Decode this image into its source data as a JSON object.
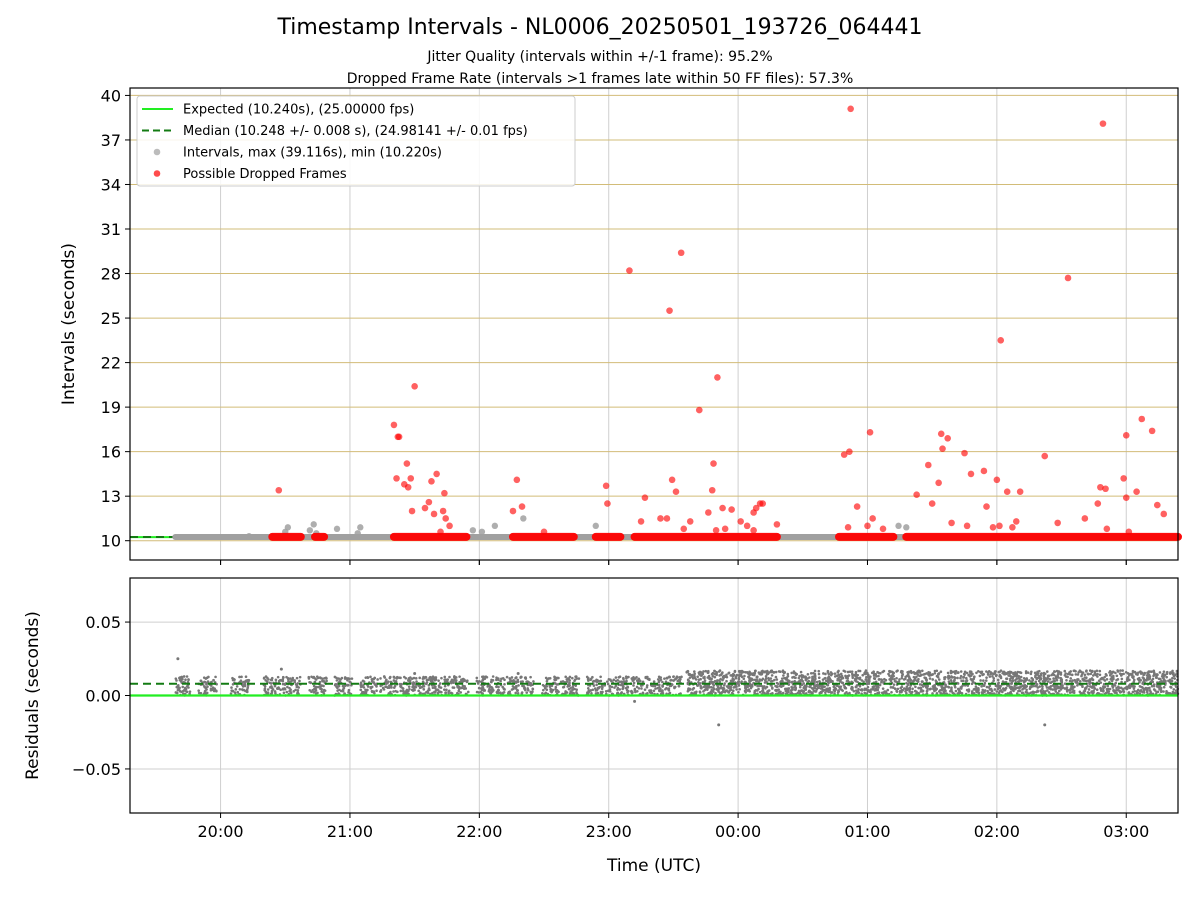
{
  "title": "Timestamp Intervals - NL0006_20250501_193726_064441",
  "subtitle_1": "Jitter Quality (intervals within +/-1 frame): 95.2%",
  "subtitle_2": "Dropped Frame Rate (intervals >1 frames late within 50 FF files): 57.3%",
  "colors": {
    "expected": "#22ee22",
    "median": "#137b13",
    "intervals": "#a0a0a0",
    "dropped": "#ff0000",
    "residuals": "#777777",
    "hgrid_top": "#d2bc78",
    "grid": "#cfcfcf"
  },
  "chart_data": [
    {
      "type": "scatter",
      "panel": "top",
      "xlabel": "",
      "ylabel": "Intervals (seconds)",
      "x_unit": "hours since 00:00 UTC",
      "xlim": [
        -4.7,
        3.4
      ],
      "ylim": [
        8.7,
        40.5
      ],
      "yticks": [
        10,
        13,
        16,
        19,
        22,
        25,
        28,
        31,
        34,
        37,
        40
      ],
      "xticks": [
        -4,
        -3,
        -2,
        -1,
        0,
        1,
        2,
        3
      ],
      "xtick_labels": [
        "20:00",
        "21:00",
        "22:00",
        "23:00",
        "00:00",
        "01:00",
        "02:00",
        "03:00"
      ],
      "grid": true,
      "legend_position": "top-left",
      "legend": [
        {
          "label": "Expected (10.240s), (25.00000 fps)",
          "kind": "line",
          "color": "#22ee22"
        },
        {
          "label": "Median (10.248 +/- 0.008 s), (24.98141 +/- 0.01 fps)",
          "kind": "dash",
          "color": "#137b13"
        },
        {
          "label": "Intervals, max (39.116s), min (10.220s)",
          "kind": "dot",
          "color": "#a0a0a0"
        },
        {
          "label": "Possible Dropped Frames",
          "kind": "dot",
          "color": "#ff0000"
        }
      ],
      "expected_value": 10.24,
      "median_value": 10.248,
      "baseline_segments": [
        [
          -4.35,
          -3.36
        ],
        [
          -2.9,
          -2.15
        ],
        [
          -1.95,
          -1.3
        ],
        [
          -1.0,
          0.15
        ],
        [
          0.1,
          0.6
        ],
        [
          0.6,
          1.2
        ],
        [
          1.25,
          1.55
        ],
        [
          1.55,
          2.4
        ],
        [
          2.3,
          3.4
        ]
      ],
      "interval_points": [
        [
          -3.78,
          10.3
        ],
        [
          -3.5,
          10.6
        ],
        [
          -3.48,
          10.9
        ],
        [
          -3.31,
          10.7
        ],
        [
          -3.28,
          11.1
        ],
        [
          -3.26,
          10.5
        ],
        [
          -3.1,
          10.8
        ],
        [
          -2.94,
          10.5
        ],
        [
          -2.92,
          10.9
        ],
        [
          -2.05,
          10.7
        ],
        [
          -1.98,
          10.6
        ],
        [
          -1.88,
          11.0
        ],
        [
          -1.66,
          11.5
        ],
        [
          -1.1,
          11.0
        ],
        [
          1.24,
          11.0
        ],
        [
          1.3,
          10.9
        ]
      ],
      "dropped_points": [
        [
          -3.55,
          13.4
        ],
        [
          -2.66,
          17.8
        ],
        [
          -2.63,
          17.0
        ],
        [
          -2.62,
          17.0
        ],
        [
          -2.64,
          14.2
        ],
        [
          -2.58,
          13.8
        ],
        [
          -2.56,
          15.2
        ],
        [
          -2.55,
          13.6
        ],
        [
          -2.53,
          14.2
        ],
        [
          -2.5,
          20.4
        ],
        [
          -2.52,
          12.0
        ],
        [
          -2.42,
          12.2
        ],
        [
          -2.39,
          12.6
        ],
        [
          -2.37,
          14.0
        ],
        [
          -2.35,
          11.8
        ],
        [
          -2.33,
          14.5
        ],
        [
          -2.28,
          12.0
        ],
        [
          -2.27,
          13.2
        ],
        [
          -2.26,
          11.5
        ],
        [
          -2.23,
          11.0
        ],
        [
          -2.3,
          10.6
        ],
        [
          -1.74,
          12.0
        ],
        [
          -1.71,
          14.1
        ],
        [
          -1.67,
          12.3
        ],
        [
          -1.5,
          10.6
        ],
        [
          -1.02,
          13.7
        ],
        [
          -1.01,
          12.5
        ],
        [
          -0.84,
          28.2
        ],
        [
          -0.75,
          11.3
        ],
        [
          -0.72,
          12.9
        ],
        [
          -0.6,
          11.5
        ],
        [
          -0.55,
          11.5
        ],
        [
          -0.53,
          25.5
        ],
        [
          -0.51,
          14.1
        ],
        [
          -0.48,
          13.3
        ],
        [
          -0.44,
          29.4
        ],
        [
          -0.42,
          10.8
        ],
        [
          -0.37,
          11.3
        ],
        [
          -0.3,
          18.8
        ],
        [
          -0.23,
          11.9
        ],
        [
          -0.19,
          15.2
        ],
        [
          -0.2,
          13.4
        ],
        [
          -0.16,
          21.0
        ],
        [
          -0.17,
          10.7
        ],
        [
          -0.12,
          12.2
        ],
        [
          -0.1,
          10.8
        ],
        [
          -0.05,
          12.1
        ],
        [
          0.02,
          11.3
        ],
        [
          0.07,
          11.0
        ],
        [
          0.12,
          11.9
        ],
        [
          0.14,
          12.2
        ],
        [
          0.17,
          12.5
        ],
        [
          0.19,
          12.5
        ],
        [
          0.3,
          11.1
        ],
        [
          0.12,
          10.7
        ],
        [
          0.82,
          15.8
        ],
        [
          0.86,
          16.0
        ],
        [
          0.85,
          10.9
        ],
        [
          0.87,
          39.1
        ],
        [
          0.92,
          12.3
        ],
        [
          1.0,
          11.0
        ],
        [
          1.02,
          17.3
        ],
        [
          1.04,
          11.5
        ],
        [
          1.12,
          10.8
        ],
        [
          1.38,
          13.1
        ],
        [
          1.47,
          15.1
        ],
        [
          1.5,
          12.5
        ],
        [
          1.55,
          13.9
        ],
        [
          1.57,
          17.2
        ],
        [
          1.58,
          16.2
        ],
        [
          1.62,
          16.9
        ],
        [
          1.65,
          11.2
        ],
        [
          1.75,
          15.9
        ],
        [
          1.77,
          11.0
        ],
        [
          1.8,
          14.5
        ],
        [
          1.9,
          14.7
        ],
        [
          1.92,
          12.3
        ],
        [
          1.97,
          10.9
        ],
        [
          2.0,
          14.1
        ],
        [
          2.02,
          11.0
        ],
        [
          2.03,
          23.5
        ],
        [
          2.08,
          13.3
        ],
        [
          2.12,
          10.9
        ],
        [
          2.15,
          11.3
        ],
        [
          2.18,
          13.3
        ],
        [
          2.37,
          15.7
        ],
        [
          2.47,
          11.2
        ],
        [
          2.55,
          27.7
        ],
        [
          2.68,
          11.5
        ],
        [
          2.78,
          12.5
        ],
        [
          2.8,
          13.6
        ],
        [
          2.82,
          38.1
        ],
        [
          2.84,
          13.5
        ],
        [
          2.85,
          10.8
        ],
        [
          2.98,
          14.2
        ],
        [
          3.0,
          17.1
        ],
        [
          3.0,
          12.9
        ],
        [
          3.02,
          10.6
        ],
        [
          3.08,
          13.3
        ],
        [
          3.12,
          18.2
        ],
        [
          3.2,
          17.4
        ],
        [
          3.24,
          12.4
        ],
        [
          3.29,
          11.8
        ]
      ]
    },
    {
      "type": "scatter",
      "panel": "bottom",
      "xlabel": "Time (UTC)",
      "ylabel": "Residuals (seconds)",
      "xlim": [
        -4.7,
        3.4
      ],
      "ylim": [
        -0.08,
        0.08
      ],
      "yticks": [
        -0.05,
        0.0,
        0.05
      ],
      "ytick_labels": [
        "−0.05",
        "0.00",
        "0.05"
      ],
      "xticks": [
        -4,
        -3,
        -2,
        -1,
        0,
        1,
        2,
        3
      ],
      "xtick_labels": [
        "20:00",
        "21:00",
        "22:00",
        "23:00",
        "00:00",
        "01:00",
        "02:00",
        "03:00"
      ],
      "grid": true,
      "expected_residual": 0.0,
      "median_residual": 0.008,
      "dense_band": {
        "x_from": -0.4,
        "x_to": 3.4,
        "y_from": 0.0,
        "y_to": 0.017
      },
      "sparse_band": {
        "x_from": -4.35,
        "x_to": -0.4,
        "y_from": 0.0,
        "y_to": 0.013
      },
      "outliers": [
        [
          -4.33,
          0.025
        ],
        [
          -3.53,
          0.018
        ],
        [
          -0.8,
          -0.004
        ],
        [
          -0.15,
          -0.02
        ],
        [
          2.37,
          -0.02
        ],
        [
          -1.7,
          0.015
        ],
        [
          -2.5,
          0.015
        ]
      ]
    }
  ]
}
